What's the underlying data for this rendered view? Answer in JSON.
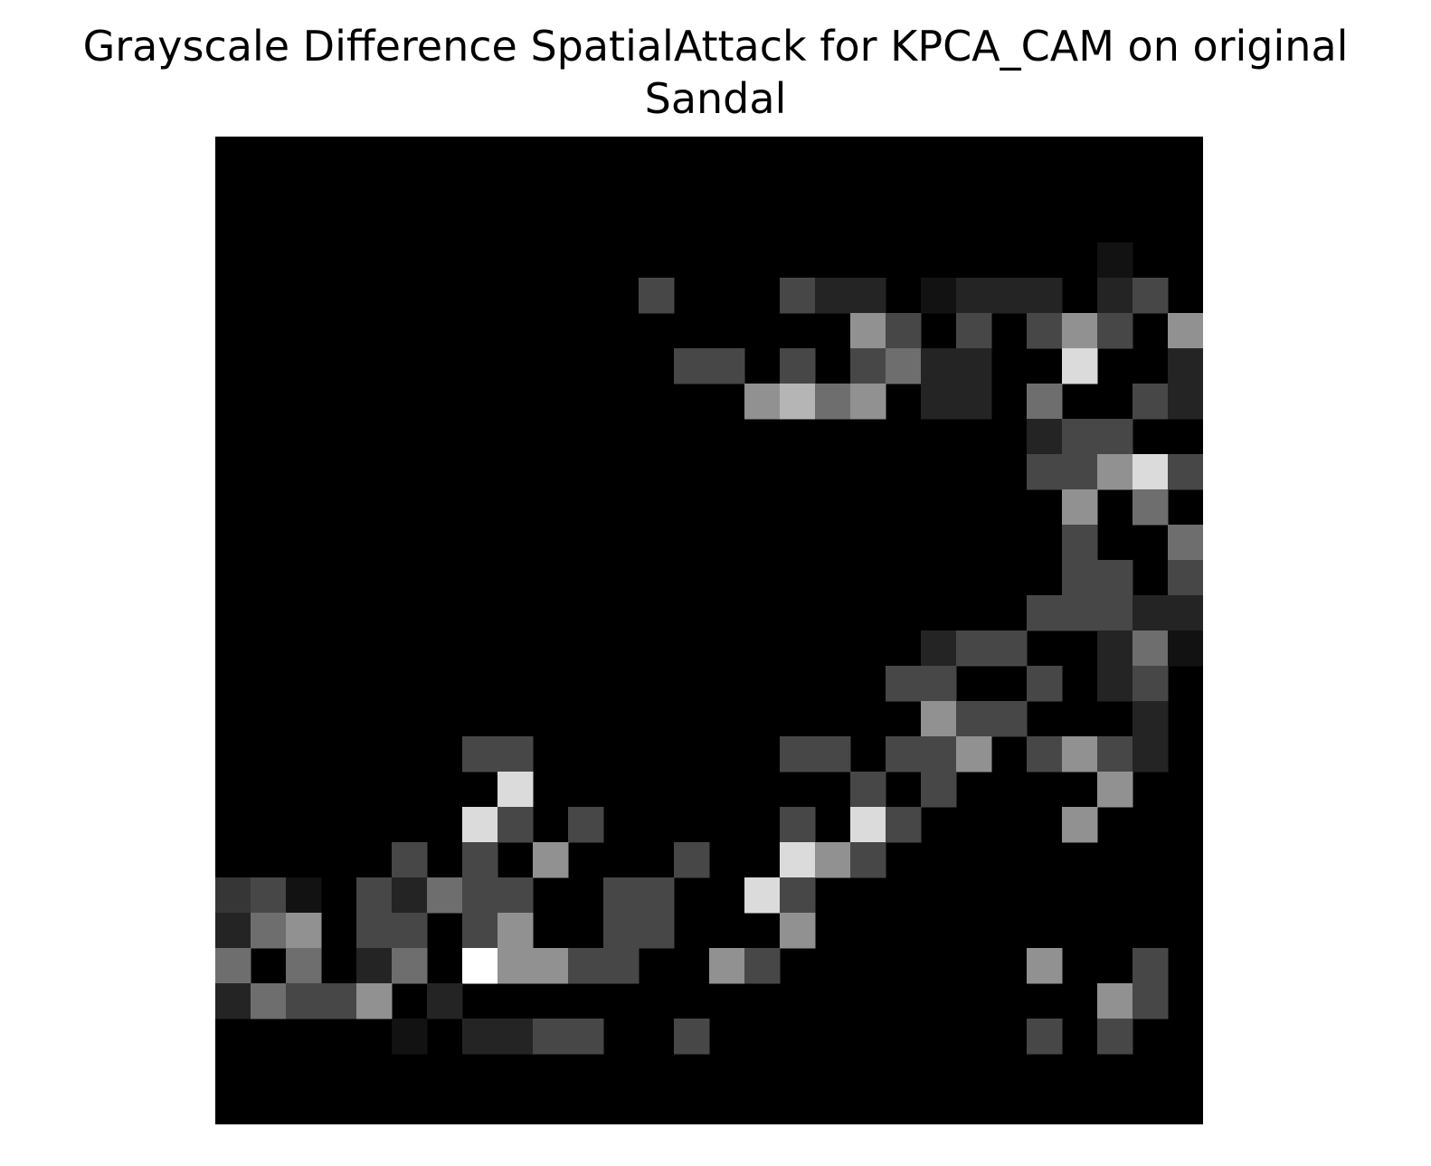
{
  "chart_data": {
    "type": "heatmap",
    "title_lines": [
      "Grayscale Difference SpatialAttack for KPCA_CAM on original",
      "Sandal"
    ],
    "colormap": "gray",
    "axes_visible": false,
    "rows": 28,
    "cols": 28,
    "cells": [
      [
        3,
        25,
        0.07
      ],
      [
        4,
        12,
        0.28
      ],
      [
        4,
        16,
        0.28
      ],
      [
        4,
        17,
        0.14
      ],
      [
        4,
        18,
        0.14
      ],
      [
        4,
        20,
        0.07
      ],
      [
        4,
        21,
        0.14
      ],
      [
        4,
        22,
        0.14
      ],
      [
        4,
        23,
        0.14
      ],
      [
        4,
        25,
        0.14
      ],
      [
        4,
        26,
        0.28
      ],
      [
        5,
        18,
        0.57
      ],
      [
        5,
        19,
        0.28
      ],
      [
        5,
        21,
        0.28
      ],
      [
        5,
        23,
        0.28
      ],
      [
        5,
        24,
        0.57
      ],
      [
        5,
        25,
        0.28
      ],
      [
        5,
        27,
        0.57
      ],
      [
        6,
        13,
        0.28
      ],
      [
        6,
        14,
        0.28
      ],
      [
        6,
        16,
        0.28
      ],
      [
        6,
        18,
        0.28
      ],
      [
        6,
        19,
        0.43
      ],
      [
        6,
        20,
        0.14
      ],
      [
        6,
        21,
        0.14
      ],
      [
        6,
        24,
        0.86
      ],
      [
        6,
        27,
        0.14
      ],
      [
        7,
        15,
        0.57
      ],
      [
        7,
        16,
        0.71
      ],
      [
        7,
        17,
        0.43
      ],
      [
        7,
        18,
        0.57
      ],
      [
        7,
        20,
        0.14
      ],
      [
        7,
        21,
        0.14
      ],
      [
        7,
        23,
        0.43
      ],
      [
        7,
        26,
        0.28
      ],
      [
        7,
        27,
        0.14
      ],
      [
        8,
        23,
        0.14
      ],
      [
        8,
        24,
        0.28
      ],
      [
        8,
        25,
        0.28
      ],
      [
        9,
        23,
        0.28
      ],
      [
        9,
        24,
        0.28
      ],
      [
        9,
        25,
        0.57
      ],
      [
        9,
        26,
        0.86
      ],
      [
        9,
        27,
        0.28
      ],
      [
        10,
        24,
        0.57
      ],
      [
        10,
        26,
        0.43
      ],
      [
        11,
        24,
        0.28
      ],
      [
        11,
        27,
        0.43
      ],
      [
        12,
        24,
        0.28
      ],
      [
        12,
        25,
        0.28
      ],
      [
        12,
        27,
        0.28
      ],
      [
        13,
        23,
        0.28
      ],
      [
        13,
        24,
        0.28
      ],
      [
        13,
        25,
        0.28
      ],
      [
        13,
        26,
        0.14
      ],
      [
        13,
        27,
        0.14
      ],
      [
        14,
        20,
        0.14
      ],
      [
        14,
        21,
        0.28
      ],
      [
        14,
        22,
        0.28
      ],
      [
        14,
        25,
        0.14
      ],
      [
        14,
        26,
        0.43
      ],
      [
        14,
        27,
        0.07
      ],
      [
        15,
        19,
        0.28
      ],
      [
        15,
        20,
        0.28
      ],
      [
        15,
        23,
        0.28
      ],
      [
        15,
        25,
        0.14
      ],
      [
        15,
        26,
        0.28
      ],
      [
        16,
        20,
        0.57
      ],
      [
        16,
        21,
        0.28
      ],
      [
        16,
        22,
        0.28
      ],
      [
        16,
        26,
        0.14
      ],
      [
        17,
        7,
        0.28
      ],
      [
        17,
        8,
        0.28
      ],
      [
        17,
        16,
        0.28
      ],
      [
        17,
        17,
        0.28
      ],
      [
        17,
        19,
        0.28
      ],
      [
        17,
        20,
        0.28
      ],
      [
        17,
        21,
        0.57
      ],
      [
        17,
        23,
        0.28
      ],
      [
        17,
        24,
        0.57
      ],
      [
        17,
        25,
        0.28
      ],
      [
        17,
        26,
        0.14
      ],
      [
        18,
        8,
        0.86
      ],
      [
        18,
        18,
        0.28
      ],
      [
        18,
        20,
        0.28
      ],
      [
        18,
        25,
        0.57
      ],
      [
        19,
        7,
        0.86
      ],
      [
        19,
        8,
        0.28
      ],
      [
        19,
        10,
        0.28
      ],
      [
        19,
        16,
        0.28
      ],
      [
        19,
        18,
        0.86
      ],
      [
        19,
        19,
        0.28
      ],
      [
        19,
        24,
        0.57
      ],
      [
        20,
        5,
        0.28
      ],
      [
        20,
        7,
        0.28
      ],
      [
        20,
        9,
        0.57
      ],
      [
        20,
        13,
        0.28
      ],
      [
        20,
        16,
        0.86
      ],
      [
        20,
        17,
        0.57
      ],
      [
        20,
        18,
        0.28
      ],
      [
        21,
        0,
        0.21
      ],
      [
        21,
        1,
        0.28
      ],
      [
        21,
        2,
        0.07
      ],
      [
        21,
        4,
        0.28
      ],
      [
        21,
        5,
        0.14
      ],
      [
        21,
        6,
        0.43
      ],
      [
        21,
        7,
        0.28
      ],
      [
        21,
        8,
        0.28
      ],
      [
        21,
        11,
        0.28
      ],
      [
        21,
        12,
        0.28
      ],
      [
        21,
        15,
        0.86
      ],
      [
        21,
        16,
        0.28
      ],
      [
        22,
        0,
        0.14
      ],
      [
        22,
        1,
        0.43
      ],
      [
        22,
        2,
        0.57
      ],
      [
        22,
        4,
        0.28
      ],
      [
        22,
        5,
        0.28
      ],
      [
        22,
        7,
        0.28
      ],
      [
        22,
        8,
        0.57
      ],
      [
        22,
        11,
        0.28
      ],
      [
        22,
        12,
        0.28
      ],
      [
        22,
        16,
        0.57
      ],
      [
        23,
        0,
        0.43
      ],
      [
        23,
        2,
        0.43
      ],
      [
        23,
        4,
        0.14
      ],
      [
        23,
        5,
        0.43
      ],
      [
        23,
        7,
        1.0
      ],
      [
        23,
        8,
        0.57
      ],
      [
        23,
        9,
        0.57
      ],
      [
        23,
        10,
        0.28
      ],
      [
        23,
        11,
        0.28
      ],
      [
        23,
        14,
        0.57
      ],
      [
        23,
        15,
        0.28
      ],
      [
        23,
        23,
        0.57
      ],
      [
        23,
        26,
        0.28
      ],
      [
        24,
        0,
        0.14
      ],
      [
        24,
        1,
        0.43
      ],
      [
        24,
        2,
        0.28
      ],
      [
        24,
        3,
        0.28
      ],
      [
        24,
        4,
        0.57
      ],
      [
        24,
        6,
        0.14
      ],
      [
        24,
        25,
        0.57
      ],
      [
        24,
        26,
        0.28
      ],
      [
        25,
        5,
        0.07
      ],
      [
        25,
        7,
        0.14
      ],
      [
        25,
        8,
        0.14
      ],
      [
        25,
        9,
        0.28
      ],
      [
        25,
        10,
        0.28
      ],
      [
        25,
        13,
        0.28
      ],
      [
        25,
        23,
        0.28
      ],
      [
        25,
        25,
        0.28
      ]
    ]
  }
}
